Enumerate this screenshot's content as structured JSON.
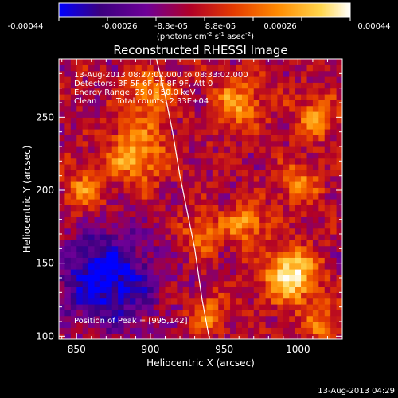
{
  "colorbar": {
    "ticks": [
      "-0.00044",
      "-0.00026",
      "-8.8e-05",
      "8.8e-05",
      "0.00026",
      "0.00044"
    ],
    "unit_main": "(photons cm",
    "unit_sup1": "-2",
    "unit_mid": " s",
    "unit_sup2": "-1",
    "unit_tail": " asec",
    "unit_end": ")"
  },
  "chart_data": {
    "type": "heatmap",
    "title": "Reconstructed RHESSI Image",
    "xlabel": "Heliocentric X (arcsec)",
    "ylabel": "Heliocentric Y (arcsec)",
    "xlim": [
      838,
      1030
    ],
    "ylim": [
      98,
      290
    ],
    "xticks": [
      850,
      900,
      950,
      1000
    ],
    "yticks": [
      100,
      150,
      200,
      250
    ],
    "zlim": [
      -0.00044,
      0.00044
    ],
    "colormap": [
      "#0000ff",
      "#3b007f",
      "#6e0097",
      "#b00028",
      "#e43a00",
      "#ff8a00",
      "#ffd64d",
      "#ffffff"
    ],
    "annotations": [
      "13-Aug-2013 08:27:02.000 to 08:33:02.000",
      "Detectors: 3F 5F 6F 7F 8F 9F, Att 0",
      "Energy Range: 25.0 - 50.0 keV",
      "Clean",
      "Total counts: 2.33E+04"
    ],
    "peak_label": "Position of Peak = [995,142]",
    "peak": [
      995,
      142
    ],
    "limb_line": {
      "x": [
        904,
        910,
        915,
        920,
        925,
        930,
        935,
        940
      ],
      "y": [
        290,
        265,
        240,
        210,
        185,
        160,
        125,
        98
      ]
    },
    "sources": [
      {
        "x": 995,
        "y": 142,
        "sigma": 12,
        "amp": 1.0
      },
      {
        "x": 965,
        "y": 178,
        "sigma": 10,
        "amp": 0.55
      },
      {
        "x": 935,
        "y": 170,
        "sigma": 9,
        "amp": 0.5
      },
      {
        "x": 890,
        "y": 225,
        "sigma": 14,
        "amp": 0.65
      },
      {
        "x": 960,
        "y": 260,
        "sigma": 12,
        "amp": 0.55
      },
      {
        "x": 1012,
        "y": 250,
        "sigma": 10,
        "amp": 0.5
      },
      {
        "x": 1000,
        "y": 205,
        "sigma": 10,
        "amp": 0.45
      },
      {
        "x": 855,
        "y": 200,
        "sigma": 10,
        "amp": 0.45
      },
      {
        "x": 900,
        "y": 265,
        "sigma": 12,
        "amp": 0.5
      },
      {
        "x": 940,
        "y": 115,
        "sigma": 9,
        "amp": 0.4
      },
      {
        "x": 1015,
        "y": 110,
        "sigma": 10,
        "amp": 0.4
      }
    ],
    "negative_region": {
      "x": 870,
      "y": 140,
      "sigma": 22,
      "amp": -0.9
    }
  },
  "timestamp": "13-Aug-2013 04:29"
}
